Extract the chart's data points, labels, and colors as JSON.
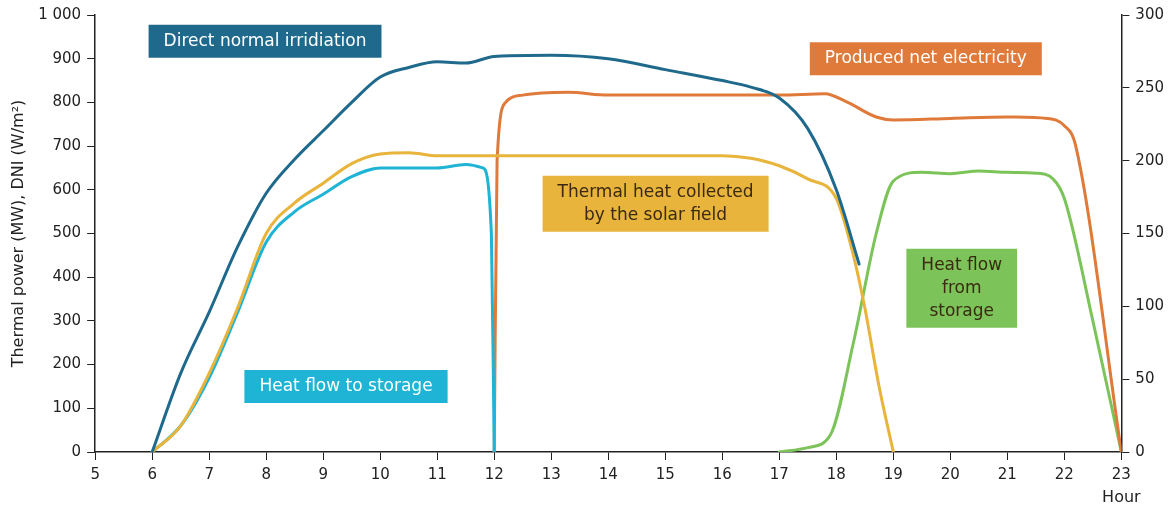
{
  "chart_data": {
    "type": "line",
    "xlabel": "Hour",
    "ylabel": "Thermal power (MW), DNI (W/m²)",
    "xlim": [
      5,
      23
    ],
    "xticks": [
      5,
      6,
      7,
      8,
      9,
      10,
      11,
      12,
      13,
      14,
      15,
      16,
      17,
      18,
      19,
      20,
      21,
      22,
      23
    ],
    "ylim": [
      0,
      1000
    ],
    "yticks": [
      0,
      100,
      200,
      300,
      400,
      500,
      600,
      700,
      800,
      900,
      {
        "value": 1000,
        "label": "1 000"
      }
    ],
    "y2lim": [
      0,
      300
    ],
    "y2ticks": [
      0,
      50,
      100,
      150,
      200,
      250,
      300
    ],
    "grid": false,
    "legend": false,
    "marker": "none",
    "line_style": "solid",
    "series": [
      {
        "name": "Direct normal irridiation",
        "color": "#1f6a8c",
        "x": [
          6,
          6.5,
          7,
          7.5,
          8,
          8.5,
          9,
          9.5,
          10,
          10.5,
          11,
          11.5,
          12,
          13,
          14,
          15,
          16,
          16.5,
          17,
          17.5,
          18,
          18.4
        ],
        "values": [
          0,
          180,
          320,
          470,
          592,
          670,
          735,
          800,
          858,
          880,
          893,
          890,
          905,
          908,
          900,
          875,
          850,
          835,
          810,
          740,
          600,
          430
        ]
      },
      {
        "name": "Thermal heat collected by the solar field",
        "color": "#e8b43c",
        "x": [
          6,
          6.5,
          7,
          7.5,
          8,
          8.5,
          9,
          9.5,
          10,
          10.5,
          11,
          12,
          14,
          16,
          16.5,
          17,
          17.5,
          18,
          18.3,
          18.5,
          18.75,
          19
        ],
        "values": [
          0,
          60,
          180,
          330,
          500,
          570,
          615,
          660,
          682,
          685,
          678,
          678,
          678,
          678,
          672,
          655,
          625,
          580,
          450,
          330,
          150,
          0
        ]
      },
      {
        "name": "Heat flow to storage",
        "color": "#1fb4d6",
        "x": [
          6,
          6.5,
          7,
          7.5,
          8,
          8.5,
          9,
          9.5,
          10,
          11,
          11.5,
          11.8,
          11.95,
          12
        ],
        "values": [
          0,
          60,
          170,
          320,
          480,
          550,
          590,
          630,
          650,
          650,
          658,
          650,
          500,
          0
        ]
      },
      {
        "name": "Produced net electricity",
        "color": "#e07a3a",
        "axis": "y2",
        "x": [
          12,
          12.05,
          12.2,
          12.5,
          13.3,
          14,
          16,
          17,
          17.8,
          18.2,
          18.7,
          19,
          20,
          21,
          21.7,
          22,
          22.2,
          23
        ],
        "values": [
          0,
          200,
          240,
          245,
          247,
          245,
          245,
          245,
          246,
          240,
          230,
          228,
          229,
          230,
          229,
          224,
          210,
          0
        ]
      },
      {
        "name": "Heat flow from storage",
        "color": "#7cc35a",
        "x": [
          17,
          17.5,
          17.9,
          18.3,
          18.7,
          19,
          19.5,
          20,
          20.5,
          21,
          21.5,
          21.8,
          22,
          22.5,
          23
        ],
        "values": [
          0,
          10,
          40,
          250,
          500,
          620,
          640,
          637,
          643,
          640,
          638,
          625,
          580,
          300,
          0
        ]
      }
    ]
  }
}
